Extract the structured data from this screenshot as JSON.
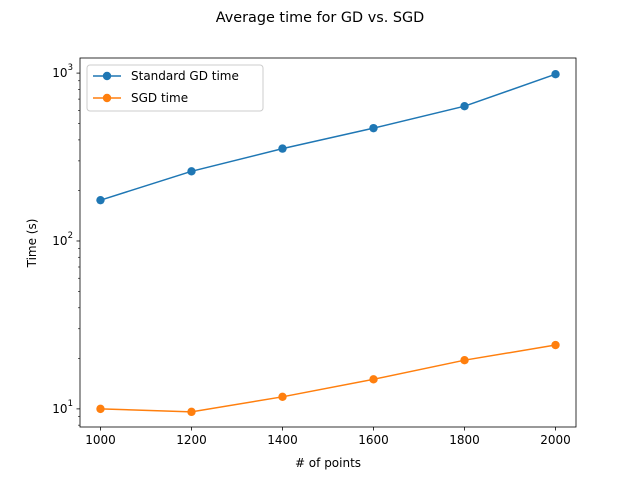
{
  "chart_data": {
    "type": "line",
    "title": "Average time for GD vs. SGD",
    "xlabel": "# of points",
    "ylabel": "Time (s)",
    "yscale": "log",
    "xlim": [
      955,
      2045
    ],
    "ylim": [
      7.8,
      1230
    ],
    "xticks": [
      1000,
      1200,
      1400,
      1600,
      1800,
      2000
    ],
    "yticks": [
      {
        "value": 10,
        "base": "10",
        "exp": "1"
      },
      {
        "value": 100,
        "base": "10",
        "exp": "2"
      },
      {
        "value": 1000,
        "base": "10",
        "exp": "3"
      }
    ],
    "legend_position": "top-left",
    "grid": false,
    "x": [
      1000,
      1200,
      1400,
      1600,
      1800,
      2000
    ],
    "series": [
      {
        "name": "Standard GD time",
        "color": "#1f77b4",
        "values": [
          175,
          260,
          355,
          470,
          635,
          985
        ]
      },
      {
        "name": "SGD time",
        "color": "#ff7f0e",
        "values": [
          10.0,
          9.6,
          11.8,
          15.0,
          19.5,
          24.0
        ]
      }
    ]
  }
}
